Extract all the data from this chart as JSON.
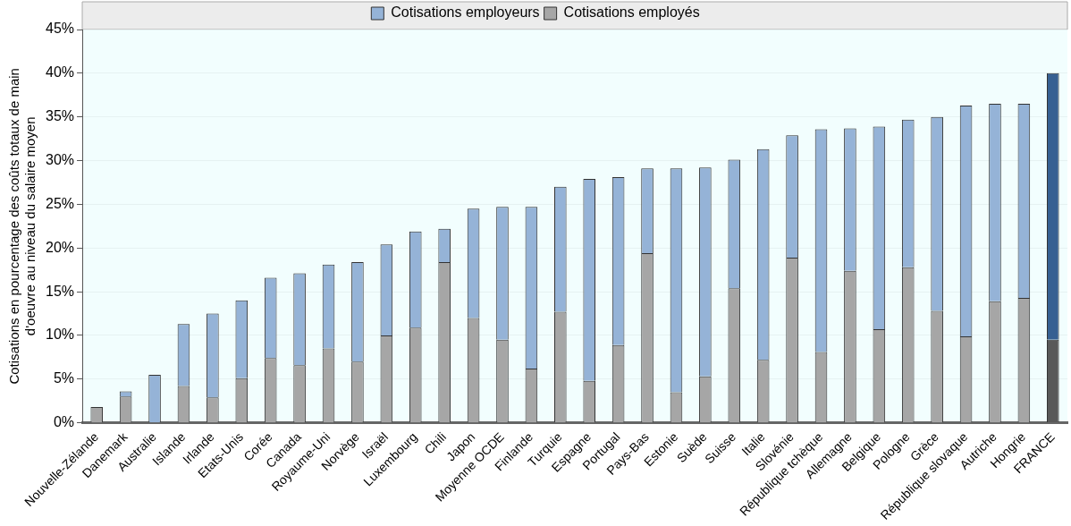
{
  "chart_data": {
    "type": "bar",
    "stacked": true,
    "ylabel": "Cotisations en pourcentage des coûts totaux de main\nd'oeuvre au niveau du salaire moyen",
    "categories": [
      "Nouvelle-Zélande",
      "Danemark",
      "Australie",
      "Islande",
      "Irlande",
      "Etats-Unis",
      "Corée",
      "Canada",
      "Royaume-Uni",
      "Norvège",
      "Israël",
      "Luxembourg",
      "Chili",
      "Japon",
      "Moyenne OCDE",
      "Finlande",
      "Turquie",
      "Espagne",
      "Portugal",
      "Pays-Bas",
      "Estonie",
      "Suède",
      "Suisse",
      "Italie",
      "Slovénie",
      "République tchèque",
      "Allemagne",
      "Belgique",
      "Pologne",
      "Grèce",
      "République slovaque",
      "Autriche",
      "Hongrie",
      "FRANCE"
    ],
    "series": [
      {
        "name": "Cotisations employés",
        "color": "#a6a6a6",
        "colors": [
          "#a6a6a6",
          "#a6a6a6",
          "#a6a6a6",
          "#a6a6a6",
          "#a6a6a6",
          "#a6a6a6",
          "#a6a6a6",
          "#a6a6a6",
          "#a6a6a6",
          "#a6a6a6",
          "#a6a6a6",
          "#a6a6a6",
          "#a6a6a6",
          "#a6a6a6",
          "#a6a6a6",
          "#a6a6a6",
          "#a6a6a6",
          "#a6a6a6",
          "#a6a6a6",
          "#a6a6a6",
          "#a6a6a6",
          "#a6a6a6",
          "#a6a6a6",
          "#a6a6a6",
          "#a6a6a6",
          "#a6a6a6",
          "#a6a6a6",
          "#a6a6a6",
          "#a6a6a6",
          "#a6a6a6",
          "#a6a6a6",
          "#a6a6a6",
          "#a6a6a6",
          "#595959"
        ],
        "values": [
          1.8,
          3.0,
          0,
          4.2,
          2.9,
          5.1,
          7.4,
          6.6,
          8.5,
          7.0,
          10.0,
          10.9,
          18.4,
          12.0,
          9.5,
          6.2,
          12.7,
          4.8,
          8.9,
          19.4,
          3.5,
          5.3,
          15.4,
          7.2,
          18.9,
          8.1,
          17.4,
          10.7,
          17.8,
          12.8,
          9.9,
          13.9,
          14.3,
          9.5
        ]
      },
      {
        "name": "Cotisations employeurs",
        "color": "#95b3d7",
        "colors": [
          "#95b3d7",
          "#95b3d7",
          "#95b3d7",
          "#95b3d7",
          "#95b3d7",
          "#95b3d7",
          "#95b3d7",
          "#95b3d7",
          "#95b3d7",
          "#95b3d7",
          "#95b3d7",
          "#95b3d7",
          "#95b3d7",
          "#95b3d7",
          "#95b3d7",
          "#95b3d7",
          "#95b3d7",
          "#95b3d7",
          "#95b3d7",
          "#95b3d7",
          "#95b3d7",
          "#95b3d7",
          "#95b3d7",
          "#95b3d7",
          "#95b3d7",
          "#95b3d7",
          "#95b3d7",
          "#95b3d7",
          "#95b3d7",
          "#95b3d7",
          "#95b3d7",
          "#95b3d7",
          "#95b3d7",
          "#376092"
        ],
        "values": [
          0,
          0.6,
          5.5,
          7.1,
          9.6,
          8.9,
          9.2,
          10.5,
          9.6,
          11.4,
          10.4,
          11.0,
          3.8,
          12.5,
          15.2,
          18.5,
          14.3,
          23.1,
          19.2,
          9.7,
          25.6,
          23.9,
          14.7,
          24.1,
          14.0,
          25.5,
          16.3,
          23.2,
          16.9,
          22.2,
          26.4,
          22.6,
          22.2,
          30.5
        ]
      }
    ],
    "ylim": [
      0,
      45
    ],
    "yticks": [
      {
        "value": 0,
        "label": "0%"
      },
      {
        "value": 5,
        "label": "5%"
      },
      {
        "value": 10,
        "label": "10%"
      },
      {
        "value": 15,
        "label": "15%"
      },
      {
        "value": 20,
        "label": "20%"
      },
      {
        "value": 25,
        "label": "25%"
      },
      {
        "value": 30,
        "label": "30%"
      },
      {
        "value": 35,
        "label": "35%"
      },
      {
        "value": 40,
        "label": "40%"
      },
      {
        "value": 45,
        "label": "45%"
      }
    ],
    "grid": "y",
    "legend": "top"
  }
}
